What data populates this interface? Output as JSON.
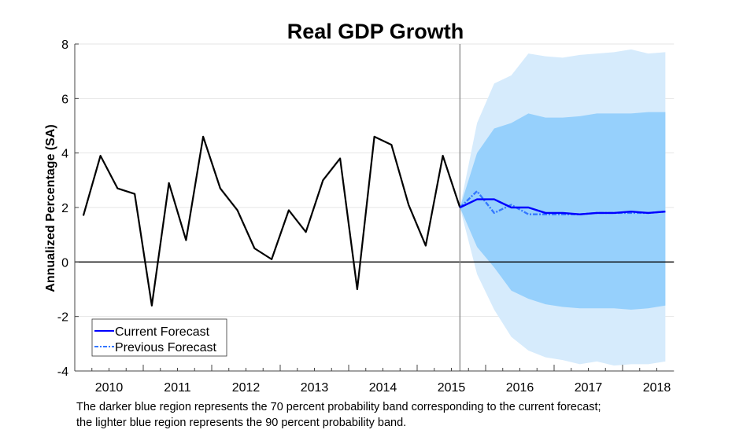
{
  "chart_data": {
    "type": "line",
    "title": "Real GDP Growth",
    "xlabel": "",
    "ylabel": "Annualized Percentage (SA)",
    "ylim": [
      -4,
      8
    ],
    "yticks": [
      -4,
      -2,
      0,
      2,
      4,
      6,
      8
    ],
    "xtick_labels": [
      "2010",
      "2011",
      "2012",
      "2013",
      "2014",
      "2015",
      "2016",
      "2017",
      "2018"
    ],
    "grid": "horizontal",
    "legend_position": "bottom-left",
    "forecast_start": "2015Q3",
    "history": {
      "quarters": [
        "2010Q1",
        "2010Q2",
        "2010Q3",
        "2010Q4",
        "2011Q1",
        "2011Q2",
        "2011Q3",
        "2011Q4",
        "2012Q1",
        "2012Q2",
        "2012Q3",
        "2012Q4",
        "2013Q1",
        "2013Q2",
        "2013Q3",
        "2013Q4",
        "2014Q1",
        "2014Q2",
        "2014Q3",
        "2014Q4",
        "2015Q1",
        "2015Q2",
        "2015Q3"
      ],
      "values": [
        1.7,
        3.9,
        2.7,
        2.5,
        -1.6,
        2.9,
        0.8,
        4.6,
        2.7,
        1.9,
        0.5,
        0.1,
        1.9,
        1.1,
        3.0,
        3.8,
        -1.0,
        4.6,
        4.3,
        2.1,
        0.6,
        3.9,
        2.0
      ],
      "color": "#000000"
    },
    "forecast_quarters": [
      "2015Q3",
      "2015Q4",
      "2016Q1",
      "2016Q2",
      "2016Q3",
      "2016Q4",
      "2017Q1",
      "2017Q2",
      "2017Q3",
      "2017Q4",
      "2018Q1",
      "2018Q2",
      "2018Q3"
    ],
    "series": [
      {
        "name": "Current Forecast",
        "style": "solid",
        "color": "#0000ff",
        "values": [
          2.0,
          2.3,
          2.3,
          2.0,
          2.0,
          1.8,
          1.8,
          1.75,
          1.8,
          1.8,
          1.85,
          1.8,
          1.85
        ]
      },
      {
        "name": "Previous Forecast",
        "style": "dash-dot",
        "color": "#3377ff",
        "values": [
          2.0,
          2.6,
          1.8,
          2.1,
          1.75,
          1.75,
          1.75,
          1.75,
          1.8,
          1.8,
          1.8,
          1.8,
          1.85
        ]
      }
    ],
    "bands": [
      {
        "probability": 90,
        "color": "#d6ebfc",
        "upper": [
          2.0,
          5.1,
          6.55,
          6.85,
          7.65,
          7.55,
          7.5,
          7.6,
          7.65,
          7.7,
          7.8,
          7.65,
          7.7
        ],
        "lower": [
          2.0,
          -0.45,
          -1.75,
          -2.75,
          -3.25,
          -3.5,
          -3.6,
          -3.75,
          -3.65,
          -3.8,
          -3.75,
          -3.75,
          -3.65
        ]
      },
      {
        "probability": 70,
        "color": "#96d0fc",
        "upper": [
          2.0,
          4.0,
          4.9,
          5.1,
          5.45,
          5.3,
          5.3,
          5.35,
          5.45,
          5.45,
          5.45,
          5.5,
          5.5
        ],
        "lower": [
          2.0,
          0.55,
          -0.2,
          -1.05,
          -1.35,
          -1.55,
          -1.65,
          -1.7,
          -1.7,
          -1.7,
          -1.75,
          -1.7,
          -1.6
        ]
      }
    ]
  },
  "caption": {
    "line1": "The darker blue region represents the 70 percent probability band corresponding to the current forecast;",
    "line2": "the lighter blue region represents the 90 percent probability band."
  }
}
